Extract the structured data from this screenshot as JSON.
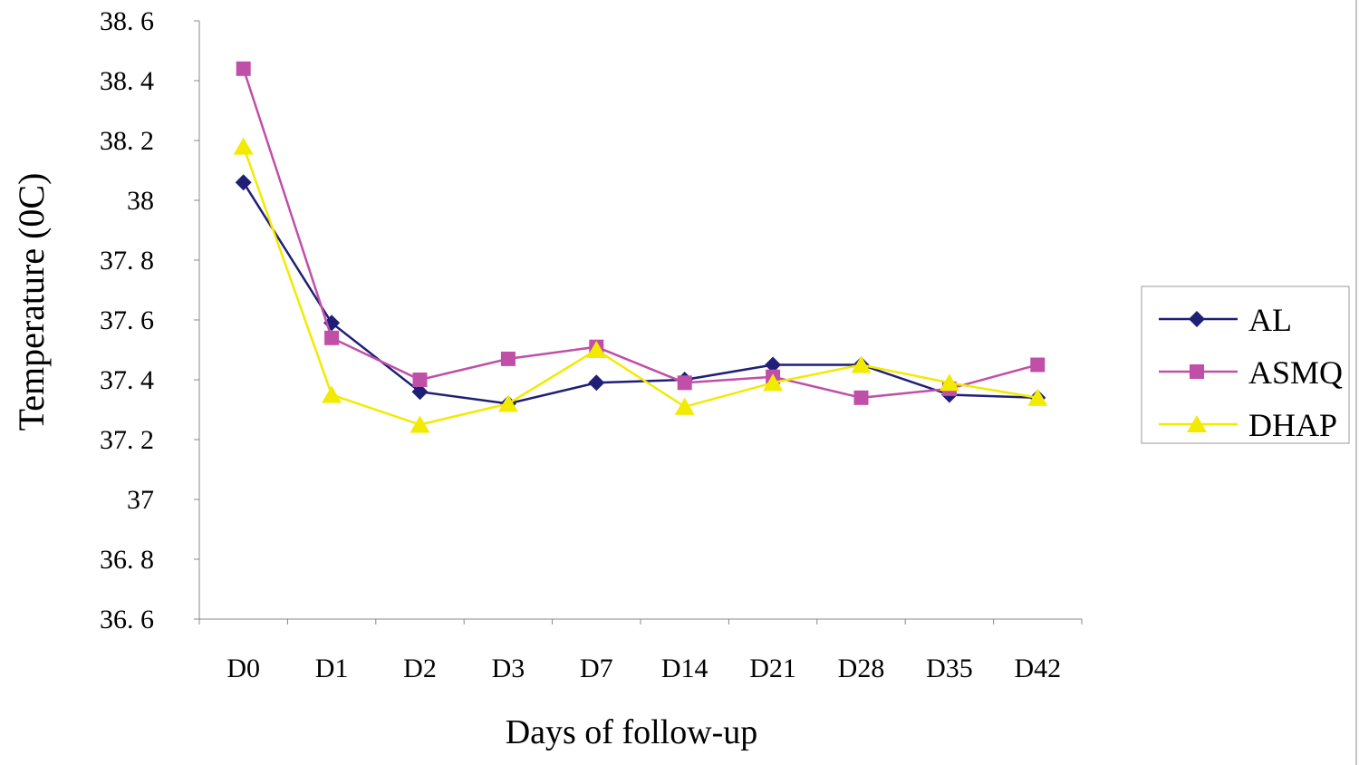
{
  "chart_data": {
    "type": "line",
    "title": "",
    "xlabel": "Days of follow-up",
    "ylabel": "Temperature (0C)",
    "ylim": [
      36.6,
      38.6
    ],
    "yticks": [
      36.6,
      36.8,
      37.0,
      37.2,
      37.4,
      37.6,
      37.8,
      38.0,
      38.2,
      38.4,
      38.6
    ],
    "ytick_labels": [
      "36. 6",
      "36. 8",
      "37",
      "37. 2",
      "37. 4",
      "37. 6",
      "37. 8",
      "38",
      "38. 2",
      "38. 4",
      "38. 6"
    ],
    "categories": [
      "D0",
      "D1",
      "D2",
      "D3",
      "D7",
      "D14",
      "D21",
      "D28",
      "D35",
      "D42"
    ],
    "grid": false,
    "legend_position": "right",
    "series": [
      {
        "name": "AL",
        "color": "#1f1f78",
        "marker": "diamond",
        "values": [
          38.06,
          37.59,
          37.36,
          37.32,
          37.39,
          37.4,
          37.45,
          37.45,
          37.35,
          37.34
        ]
      },
      {
        "name": "ASMQ",
        "color": "#c04fa8",
        "marker": "square",
        "values": [
          38.44,
          37.54,
          37.4,
          37.47,
          37.51,
          37.39,
          37.41,
          37.34,
          37.37,
          37.45
        ]
      },
      {
        "name": "DHAP",
        "color": "#f2ea00",
        "marker": "triangle",
        "values": [
          38.18,
          37.35,
          37.25,
          37.32,
          37.5,
          37.31,
          37.39,
          37.45,
          37.39,
          37.34
        ]
      }
    ]
  }
}
